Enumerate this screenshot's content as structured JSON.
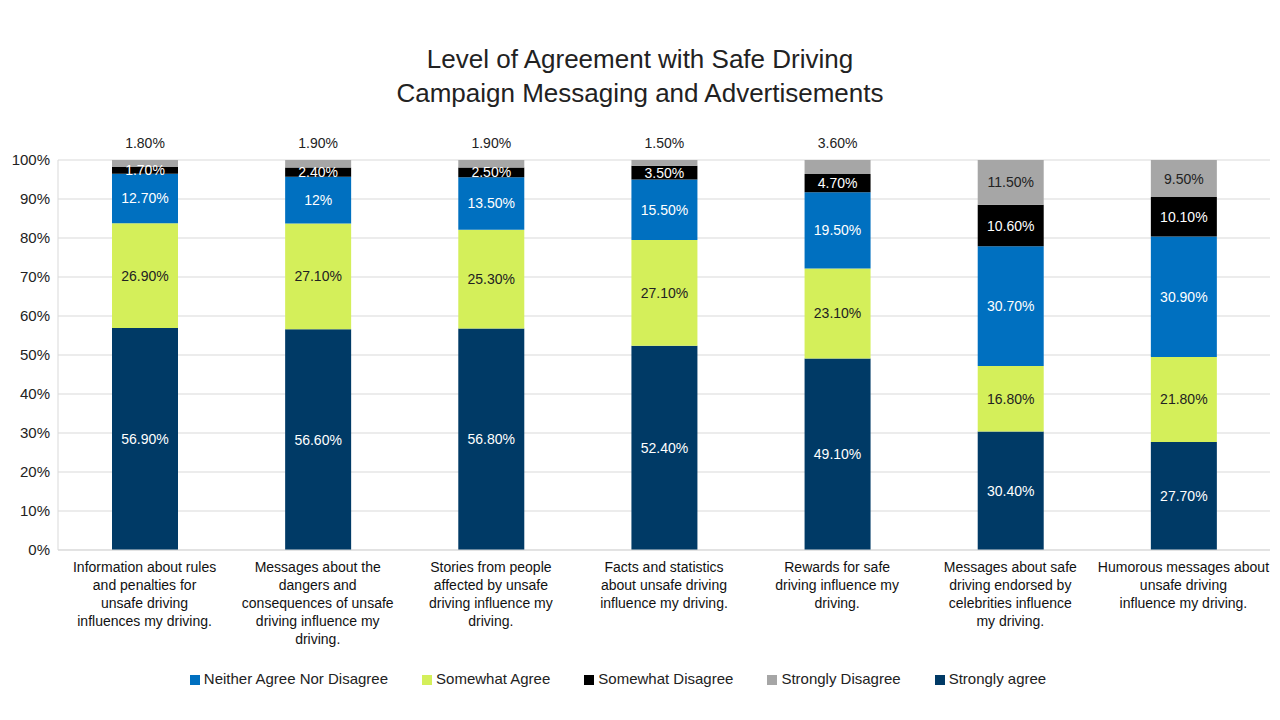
{
  "chart_data": {
    "type": "bar",
    "title": "Level of Agreement with Safe Driving\nCampaign Messaging and Advertisements",
    "categories": [
      "Information about rules and penalties for unsafe driving influences my driving.",
      "Messages about the dangers and consequences of unsafe driving influence my driving.",
      "Stories from people affected by unsafe driving influence my driving.",
      "Facts and statistics about unsafe driving influence my driving.",
      "Rewards for safe driving influence my driving.",
      "Messages about safe driving endorsed by celebrities influence my driving.",
      "Humorous messages about unsafe driving influence my driving."
    ],
    "series": [
      {
        "name": "Strongly agree",
        "color": "#003a66",
        "values": [
          56.9,
          56.6,
          56.8,
          52.4,
          49.1,
          30.4,
          27.7
        ],
        "value_labels": [
          "56.90%",
          "56.60%",
          "56.80%",
          "52.40%",
          "49.10%",
          "30.40%",
          "27.70%"
        ]
      },
      {
        "name": "Somewhat Agree",
        "color": "#d4ef5a",
        "values": [
          26.9,
          27.1,
          25.3,
          27.1,
          23.1,
          16.8,
          21.8
        ],
        "value_labels": [
          "26.90%",
          "27.10%",
          "25.30%",
          "27.10%",
          "23.10%",
          "16.80%",
          "21.80%"
        ]
      },
      {
        "name": "Neither Agree Nor Disagree",
        "color": "#0070c0",
        "values": [
          12.7,
          12,
          13.5,
          15.5,
          19.5,
          30.7,
          30.9
        ],
        "value_labels": [
          "12.70%",
          "12%",
          "13.50%",
          "15.50%",
          "19.50%",
          "30.70%",
          "30.90%"
        ]
      },
      {
        "name": "Somewhat Disagree",
        "color": "#000000",
        "values": [
          1.7,
          2.4,
          2.5,
          3.5,
          4.7,
          10.6,
          10.1
        ],
        "value_labels": [
          "1.70%",
          "2.40%",
          "2.50%",
          "3.50%",
          "4.70%",
          "10.60%",
          "10.10%"
        ]
      },
      {
        "name": "Strongly Disagree",
        "color": "#a6a6a6",
        "values": [
          1.8,
          1.9,
          1.9,
          1.5,
          3.6,
          11.5,
          9.5
        ],
        "value_labels": [
          "1.80%",
          "1.90%",
          "1.90%",
          "1.50%",
          "3.60%",
          "11.50%",
          "9.50%"
        ]
      }
    ],
    "stacked": true,
    "data_labels": true,
    "ylim": [
      0,
      100
    ],
    "yticks": [
      {
        "value": 0,
        "label": "0%"
      },
      {
        "value": 10,
        "label": "10%"
      },
      {
        "value": 20,
        "label": "20%"
      },
      {
        "value": 30,
        "label": "30%"
      },
      {
        "value": 40,
        "label": "40%"
      },
      {
        "value": 50,
        "label": "50%"
      },
      {
        "value": 60,
        "label": "60%"
      },
      {
        "value": 70,
        "label": "70%"
      },
      {
        "value": 80,
        "label": "80%"
      },
      {
        "value": 90,
        "label": "90%"
      },
      {
        "value": 100,
        "label": "100%"
      }
    ],
    "grid": true,
    "legend": "bottom"
  }
}
